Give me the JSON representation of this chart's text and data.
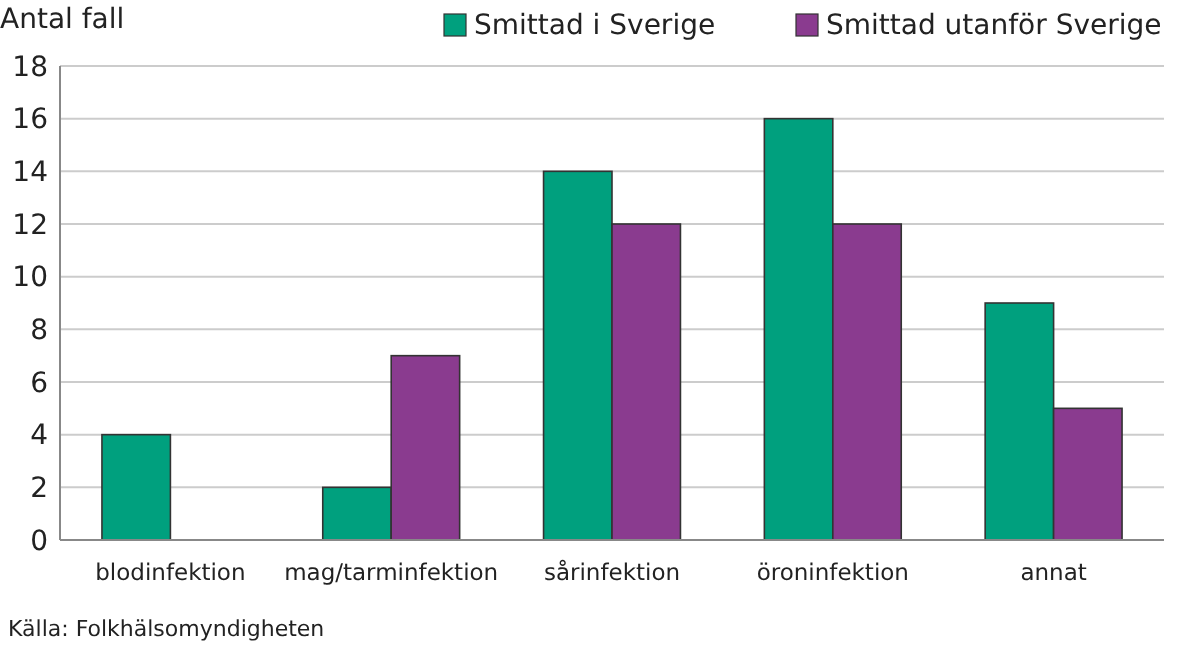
{
  "chart_data": {
    "type": "bar",
    "ylabel": "Antal fall",
    "categories": [
      "blodinfektion",
      "mag/tarminfektion",
      "sårinfektion",
      "öroninfektion",
      "annat"
    ],
    "series": [
      {
        "name": "Smittad i Sverige",
        "color": "#00a07e",
        "values": [
          4,
          2,
          14,
          16,
          9
        ]
      },
      {
        "name": "Smittad utanför Sverige",
        "color": "#8a3b8f",
        "values": [
          0,
          7,
          12,
          12,
          5
        ]
      }
    ],
    "ylim": [
      0,
      18
    ],
    "yticks": [
      0,
      2,
      4,
      6,
      8,
      10,
      12,
      14,
      16,
      18
    ],
    "grid": "y",
    "legend": "top",
    "annotations": [
      "Källa: Folkhälsomyndigheten"
    ]
  }
}
